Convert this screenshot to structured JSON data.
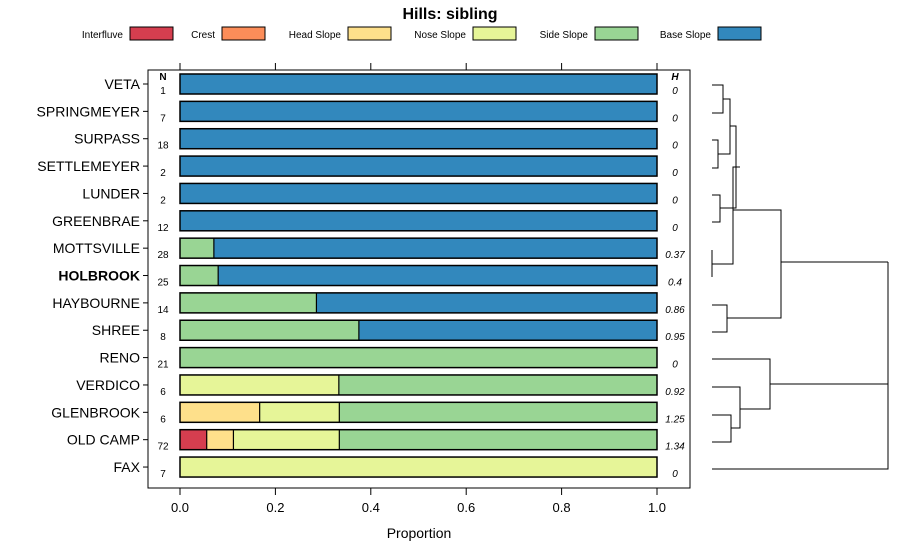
{
  "chart_data": {
    "type": "bar",
    "subtype": "stacked-horizontal-proportion",
    "title": "Hills: sibling",
    "xlabel": "Proportion",
    "ylabel": "",
    "xlim": [
      0,
      1
    ],
    "xticks": [
      "0.0",
      "0.2",
      "0.4",
      "0.6",
      "0.8",
      "1.0"
    ],
    "xtick_values": [
      0,
      0.2,
      0.4,
      0.6,
      0.8,
      1.0
    ],
    "n_header": "N",
    "h_header": "H",
    "highlighted": "HOLBROOK",
    "legend_position": "top",
    "series": [
      {
        "name": "Interfluve",
        "color": "#d53e4f"
      },
      {
        "name": "Crest",
        "color": "#fc8d59"
      },
      {
        "name": "Head Slope",
        "color": "#fee08b"
      },
      {
        "name": "Nose Slope",
        "color": "#e6f598"
      },
      {
        "name": "Side Slope",
        "color": "#99d594"
      },
      {
        "name": "Base Slope",
        "color": "#3288bd"
      }
    ],
    "categories": [
      "VETA",
      "SPRINGMEYER",
      "SURPASS",
      "SETTLEMEYER",
      "LUNDER",
      "GREENBRAE",
      "MOTTSVILLE",
      "HOLBROOK",
      "HAYBOURNE",
      "SHREE",
      "RENO",
      "VERDICO",
      "GLENBROOK",
      "OLD CAMP",
      "FAX"
    ],
    "rows": [
      {
        "name": "VETA",
        "n": "1",
        "h": "0",
        "values": [
          0,
          0,
          0,
          0,
          0,
          1
        ]
      },
      {
        "name": "SPRINGMEYER",
        "n": "7",
        "h": "0",
        "values": [
          0,
          0,
          0,
          0,
          0,
          1
        ]
      },
      {
        "name": "SURPASS",
        "n": "18",
        "h": "0",
        "values": [
          0,
          0,
          0,
          0,
          0,
          1
        ]
      },
      {
        "name": "SETTLEMEYER",
        "n": "2",
        "h": "0",
        "values": [
          0,
          0,
          0,
          0,
          0,
          1
        ]
      },
      {
        "name": "LUNDER",
        "n": "2",
        "h": "0",
        "values": [
          0,
          0,
          0,
          0,
          0,
          1
        ]
      },
      {
        "name": "GREENBRAE",
        "n": "12",
        "h": "0",
        "values": [
          0,
          0,
          0,
          0,
          0,
          1
        ]
      },
      {
        "name": "MOTTSVILLE",
        "n": "28",
        "h": "0.37",
        "values": [
          0,
          0,
          0,
          0,
          0.071,
          0.929
        ]
      },
      {
        "name": "HOLBROOK",
        "n": "25",
        "h": "0.4",
        "values": [
          0,
          0,
          0,
          0,
          0.08,
          0.92
        ]
      },
      {
        "name": "HAYBOURNE",
        "n": "14",
        "h": "0.86",
        "values": [
          0,
          0,
          0,
          0,
          0.286,
          0.714
        ]
      },
      {
        "name": "SHREE",
        "n": "8",
        "h": "0.95",
        "values": [
          0,
          0,
          0,
          0,
          0.375,
          0.625
        ]
      },
      {
        "name": "RENO",
        "n": "21",
        "h": "0",
        "values": [
          0,
          0,
          0,
          0,
          1,
          0
        ]
      },
      {
        "name": "VERDICO",
        "n": "6",
        "h": "0.92",
        "values": [
          0,
          0,
          0,
          0.333,
          0.667,
          0
        ]
      },
      {
        "name": "GLENBROOK",
        "n": "6",
        "h": "1.25",
        "values": [
          0,
          0,
          0.167,
          0.167,
          0.666,
          0
        ]
      },
      {
        "name": "OLD CAMP",
        "n": "72",
        "h": "1.34",
        "values": [
          0.056,
          0,
          0.056,
          0.222,
          0.666,
          0
        ]
      },
      {
        "name": "FAX",
        "n": "7",
        "h": "0",
        "values": [
          0,
          0,
          0,
          1,
          0,
          0
        ]
      }
    ],
    "dendrogram": {
      "description": "hierarchical clustering of series by composition",
      "merges": [
        {
          "a": "VETA",
          "b": "SPRINGMEYER",
          "height": 0.05
        },
        {
          "a": "SURPASS",
          "b": "SETTLEMEYER",
          "height": 0.03
        },
        {
          "a": "LUNDER",
          "b": "GREENBRAE",
          "height": 0.03
        },
        {
          "a": "MOTTSVILLE",
          "b": "HOLBROOK",
          "height": 0.01
        },
        {
          "a": "HAYBOURNE",
          "b": "SHREE",
          "height": 0.09
        },
        {
          "a": "GLENBROOK",
          "b": "OLD CAMP",
          "height": 0.06
        }
      ]
    }
  }
}
